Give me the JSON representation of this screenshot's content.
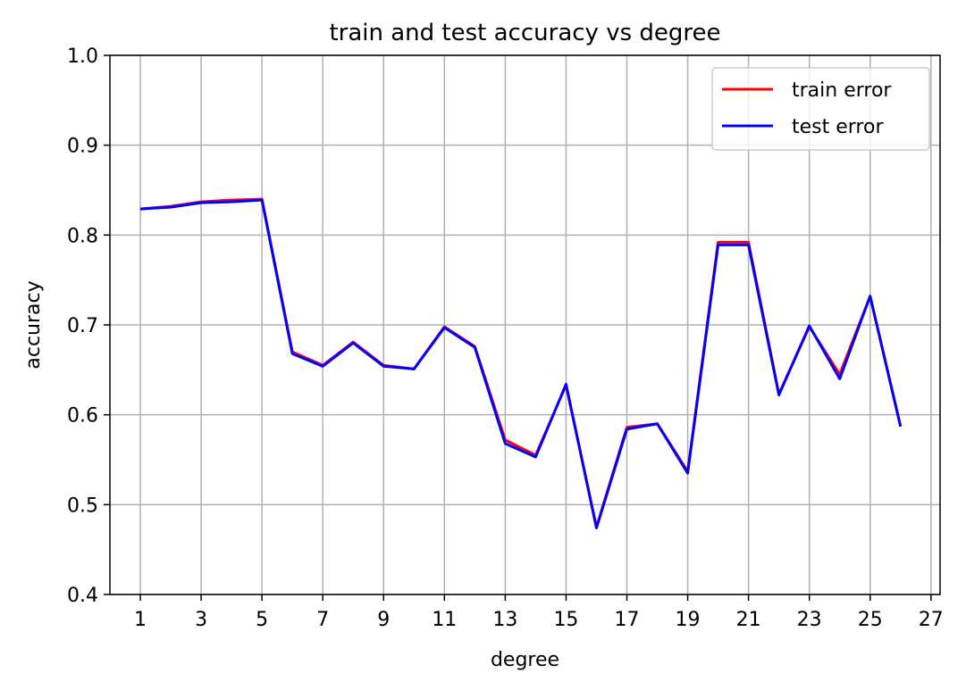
{
  "chart_data": {
    "type": "line",
    "title": "train and test accuracy vs degree",
    "xlabel": "degree",
    "ylabel": "accuracy",
    "xlim": [
      0,
      27.3
    ],
    "ylim": [
      0.4,
      1.0
    ],
    "xticks": [
      1,
      3,
      5,
      7,
      9,
      11,
      13,
      15,
      17,
      19,
      21,
      23,
      25,
      27
    ],
    "yticks": [
      0.4,
      0.5,
      0.6,
      0.7,
      0.8,
      0.9,
      1.0
    ],
    "ytick_labels": [
      "0.4",
      "0.5",
      "0.6",
      "0.7",
      "0.8",
      "0.9",
      "1.0"
    ],
    "grid": true,
    "legend_position": "top-right",
    "x": [
      1,
      2,
      3,
      4,
      5,
      6,
      7,
      8,
      9,
      10,
      11,
      12,
      13,
      14,
      15,
      16,
      17,
      18,
      19,
      20,
      21,
      22,
      23,
      24,
      25,
      26
    ],
    "series": [
      {
        "name": "train error",
        "color": "#ff0000",
        "values": [
          0.829,
          0.832,
          0.837,
          0.839,
          0.84,
          0.67,
          0.655,
          0.681,
          0.655,
          0.651,
          0.698,
          0.676,
          0.572,
          0.555,
          0.633,
          0.475,
          0.586,
          0.59,
          0.537,
          0.792,
          0.792,
          0.623,
          0.698,
          0.645,
          0.732,
          0.587
        ]
      },
      {
        "name": "test error",
        "color": "#0000ff",
        "values": [
          0.829,
          0.831,
          0.836,
          0.837,
          0.839,
          0.668,
          0.654,
          0.68,
          0.654,
          0.651,
          0.697,
          0.675,
          0.568,
          0.553,
          0.634,
          0.474,
          0.584,
          0.59,
          0.535,
          0.789,
          0.789,
          0.622,
          0.699,
          0.64,
          0.732,
          0.587
        ]
      }
    ]
  }
}
